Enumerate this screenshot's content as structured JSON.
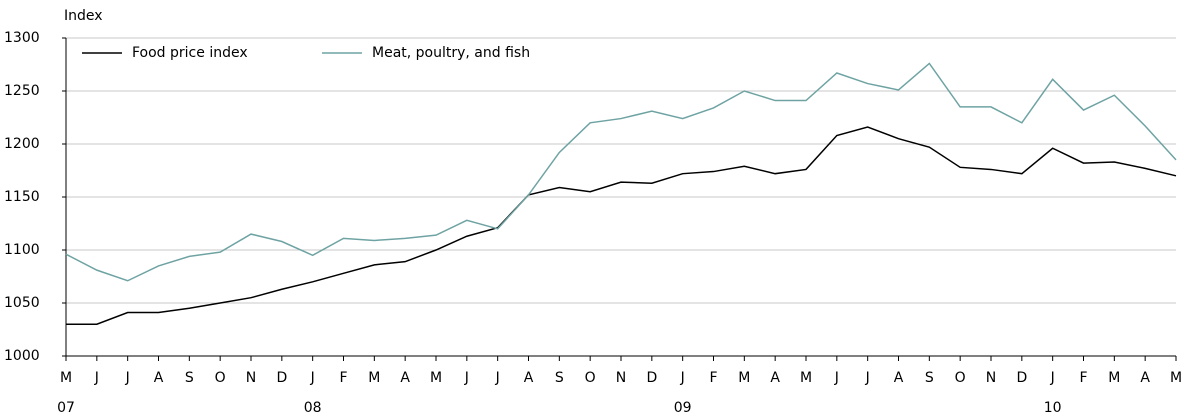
{
  "chart_data": {
    "type": "line",
    "y_label": "Index",
    "categories": [
      "M",
      "J",
      "J",
      "A",
      "S",
      "O",
      "N",
      "D",
      "J",
      "F",
      "M",
      "A",
      "M",
      "J",
      "J",
      "A",
      "S",
      "O",
      "N",
      "D",
      "J",
      "F",
      "M",
      "A",
      "M",
      "J",
      "J",
      "A",
      "S",
      "O",
      "N",
      "D",
      "J",
      "F",
      "M",
      "A",
      "M"
    ],
    "year_labels": [
      "07",
      null,
      null,
      null,
      null,
      null,
      null,
      null,
      "08",
      null,
      null,
      null,
      null,
      null,
      null,
      null,
      null,
      null,
      null,
      null,
      "09",
      null,
      null,
      null,
      null,
      null,
      null,
      null,
      null,
      null,
      null,
      null,
      "10",
      null,
      null,
      null,
      null
    ],
    "series": [
      {
        "name": "Food price index",
        "color": "#000000",
        "values": [
          1030,
          1030,
          1041,
          1041,
          1045,
          1050,
          1055,
          1063,
          1070,
          1078,
          1086,
          1089,
          1100,
          1113,
          1121,
          1152,
          1159,
          1155,
          1164,
          1163,
          1172,
          1174,
          1179,
          1172,
          1176,
          1208,
          1216,
          1205,
          1197,
          1178,
          1176,
          1172,
          1196,
          1182,
          1183,
          1177,
          1170
        ]
      },
      {
        "name": "Meat, poultry, and fish",
        "color": "#6fa3a3",
        "values": [
          1096,
          1081,
          1071,
          1085,
          1094,
          1098,
          1115,
          1108,
          1095,
          1111,
          1109,
          1111,
          1114,
          1128,
          1120,
          1152,
          1192,
          1220,
          1224,
          1231,
          1224,
          1234,
          1250,
          1241,
          1241,
          1267,
          1257,
          1251,
          1276,
          1235,
          1235,
          1220,
          1261,
          1232,
          1246,
          1217,
          1185
        ]
      }
    ],
    "ylim": [
      1000,
      1300
    ],
    "yticks": [
      1000,
      1050,
      1100,
      1150,
      1200,
      1250,
      1300
    ],
    "grid": true,
    "legend": "top-left"
  }
}
